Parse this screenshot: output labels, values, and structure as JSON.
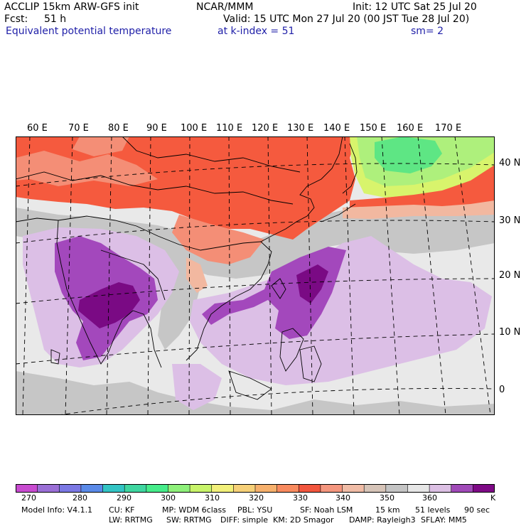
{
  "header": {
    "model": "ACCLIP 15km ARW-GFS init",
    "org": "NCAR/MMM",
    "init": "Init: 12 UTC Sat 25 Jul 20",
    "fcst_label": "Fcst:",
    "fcst_value": "51 h",
    "valid": "Valid: 15 UTC Mon 27 Jul 20 (00 JST Tue 28 Jul 20)",
    "field": "Equivalent potential temperature",
    "level": "at k-index =  51",
    "smooth": "sm= 2"
  },
  "axes": {
    "lon_labels": [
      "60 E",
      "70 E",
      "80 E",
      "90 E",
      "100 E",
      "110 E",
      "120 E",
      "130 E",
      "140 E",
      "150 E",
      "160 E",
      "170 E"
    ],
    "lat_labels": [
      "40 N",
      "30 N",
      "20 N",
      "10 N",
      "0"
    ]
  },
  "colorbar": {
    "colors": [
      "#c84bd0",
      "#9a6fd6",
      "#7b78e4",
      "#5a8ae8",
      "#33c4c4",
      "#3fd6a0",
      "#46ec8a",
      "#8ef07a",
      "#c8f46a",
      "#f2f07a",
      "#f6d078",
      "#f6b06c",
      "#f88a5e",
      "#f2563e",
      "#f4967e",
      "#f0bca6",
      "#d6c4b8",
      "#c4c4c4",
      "#e6e6e6",
      "#dcc0e4",
      "#a04ab8",
      "#7e0a86"
    ],
    "tick_labels": [
      "270",
      "280",
      "290",
      "300",
      "310",
      "320",
      "330",
      "340",
      "350",
      "360"
    ],
    "unit": "K"
  },
  "footer": {
    "line1": [
      "Model Info: V4.1.1",
      "CU: KF",
      "MP: WDM 6class",
      "PBL: YSU",
      "SF: Noah LSM",
      "15 km",
      "51 levels",
      "90 sec"
    ],
    "line2": [
      "LW: RRTMG",
      "SW: RRTMG",
      "DIFF: simple",
      "KM: 2D Smagor",
      "DAMP: Rayleigh3",
      "SFLAY: MM5"
    ]
  },
  "palette": {
    "ocean": "#e9e9e9",
    "gray": "#c6c6c6",
    "red": "#f55a3e",
    "salmon": "#f48e76",
    "peach": "#f2b8a0",
    "lavender": "#dcbfe6",
    "mauve": "#a348bc",
    "plum": "#7a0a84",
    "green": "#5ee684",
    "lightgreen": "#aef07c",
    "yellowgreen": "#d8f46c"
  }
}
